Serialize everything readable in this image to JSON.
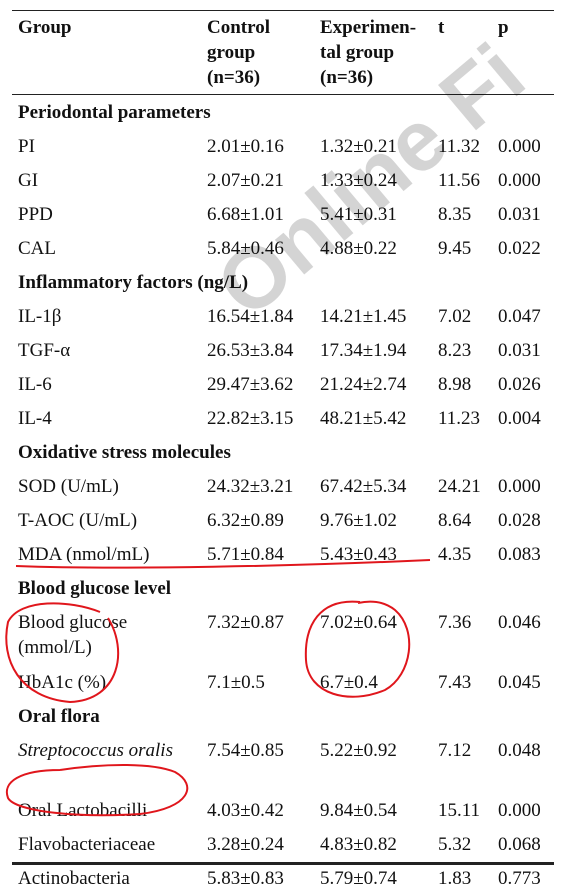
{
  "watermark": "Online Fi",
  "table": {
    "header": [
      [
        "Group"
      ],
      [
        "Control",
        "group",
        "(n=36)"
      ],
      [
        "Experimen-",
        "tal group",
        "(n=36)"
      ],
      [
        "t"
      ],
      [
        "p"
      ]
    ],
    "sections": [
      {
        "title": "Periodontal parameters",
        "rows": [
          {
            "cells": [
              "PI",
              "2.01±0.16",
              "1.32±0.21",
              "11.32",
              "0.000"
            ]
          },
          {
            "cells": [
              "GI",
              "2.07±0.21",
              "1.33±0.24",
              "11.56",
              "0.000"
            ]
          },
          {
            "cells": [
              "PPD",
              "6.68±1.01",
              "5.41±0.31",
              "8.35",
              "0.031"
            ]
          },
          {
            "cells": [
              "CAL",
              "5.84±0.46",
              "4.88±0.22",
              "9.45",
              "0.022"
            ]
          }
        ]
      },
      {
        "title": "Inflammatory factors (ng/L)",
        "rows": [
          {
            "cells": [
              "IL-1β",
              "16.54±1.84",
              "14.21±1.45",
              "7.02",
              "0.047"
            ]
          },
          {
            "cells": [
              "TGF-α",
              "26.53±3.84",
              "17.34±1.94",
              "8.23",
              "0.031"
            ]
          },
          {
            "cells": [
              "IL-6",
              "29.47±3.62",
              "21.24±2.74",
              "8.98",
              "0.026"
            ]
          },
          {
            "cells": [
              "IL-4",
              "22.82±3.15",
              "48.21±5.42",
              "11.23",
              "0.004"
            ]
          }
        ]
      },
      {
        "title": "Oxidative stress molecules",
        "rows": [
          {
            "cells": [
              "SOD (U/mL)",
              "24.32±3.21",
              "67.42±5.34",
              "24.21",
              "0.000"
            ]
          },
          {
            "cells": [
              "T-AOC (U/mL)",
              "6.32±0.89",
              "9.76±1.02",
              "8.64",
              "0.028"
            ]
          },
          {
            "cells": [
              "MDA (nmol/mL)",
              "5.71±0.84",
              "5.43±0.43",
              "4.35",
              "0.083"
            ]
          }
        ]
      },
      {
        "title": "Blood glucose level",
        "rows": [
          {
            "cells": [
              "Blood glucose (mmol/L)",
              "7.32±0.87",
              "7.02±0.64",
              "7.36",
              "0.046"
            ]
          },
          {
            "cells": [
              "HbA1c (%)",
              "7.1±0.5",
              "6.7±0.4",
              "7.43",
              "0.045"
            ]
          }
        ]
      },
      {
        "title": "Oral flora",
        "rows": [
          {
            "cells": [
              "Streptococcus oralis",
              "7.54±0.85",
              "5.22±0.92",
              "7.12",
              "0.048"
            ],
            "italic": true
          },
          {
            "cells": [
              "Oral Lactobacilli",
              "4.03±0.42",
              "9.84±0.54",
              "15.11",
              "0.000"
            ]
          },
          {
            "cells": [
              "Flavobacteriaceae",
              "3.28±0.24",
              "4.83±0.82",
              "5.32",
              "0.068"
            ]
          },
          {
            "cells": [
              "Actinobacteria",
              "5.83±0.83",
              "5.79±0.74",
              "1.83",
              "0.773"
            ]
          }
        ]
      }
    ]
  }
}
